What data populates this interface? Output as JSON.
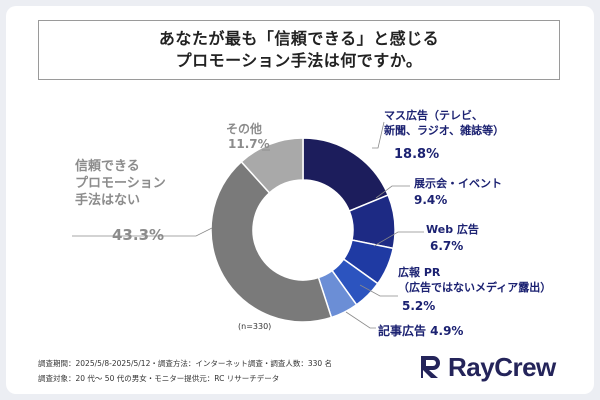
{
  "title": {
    "line1": "あなたが最も「信頼できる」と感じる",
    "line2": "プロモーション手法は何ですか。"
  },
  "chart_data": {
    "type": "pie",
    "donut": true,
    "slices": [
      {
        "name": "マス広告（テレビ、新聞、ラジオ、雑誌等）",
        "label_lines": [
          "マス広告（テレビ、",
          "新聞、ラジオ、雑誌等）"
        ],
        "value_label": "18.8%",
        "value": 18.8,
        "color": "#1c1d5c"
      },
      {
        "name": "展示会・イベント",
        "label_lines": [
          "展示会・イベント"
        ],
        "value_label": "9.4%",
        "value": 9.4,
        "color": "#1d2a84"
      },
      {
        "name": "Web 広告",
        "label_lines": [
          "Web 広告"
        ],
        "value_label": "6.7%",
        "value": 6.7,
        "color": "#1f3aa3"
      },
      {
        "name": "広報 PR（広告ではないメディア露出）",
        "label_lines": [
          "広報 PR",
          "（広告ではないメディア露出）"
        ],
        "value_label": "5.2%",
        "value": 5.2,
        "color": "#2c54bf"
      },
      {
        "name": "記事広告",
        "label_lines": [
          "記事広告 4.9%"
        ],
        "value_label": "",
        "value": 4.9,
        "color": "#6b8ed6"
      },
      {
        "name": "信頼できるプロモーション手法はない",
        "label_lines": [
          "信頼できる",
          "プロモーション",
          "手法はない"
        ],
        "value_label": "43.3%",
        "value": 43.3,
        "color": "#7a7a7a"
      },
      {
        "name": "その他",
        "label_lines": [
          "その他"
        ],
        "value_label": "11.7%",
        "value": 11.7,
        "color": "#a9a9a9"
      }
    ],
    "sample_note": "(n=330)"
  },
  "footer": {
    "line1": "調査期間：2025/5/8-2025/5/12・調査方法：インターネット調査・調査人数：330 名",
    "line2": "調査対象：20 代～ 50 代の男女・モニター提供元：RC リサーチデータ"
  },
  "logo": {
    "text": "RayCrew",
    "icon": "raycrew-r-logo-icon"
  }
}
